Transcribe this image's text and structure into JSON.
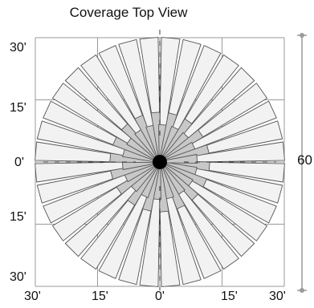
{
  "title": "Coverage Top View",
  "y_labels": [
    "30'",
    "15'",
    "0'",
    "15'",
    "30'"
  ],
  "x_labels": [
    "30'",
    "15'",
    "0'",
    "15'",
    "30'"
  ],
  "dimension_label": "60",
  "colors": {
    "beam_fill": "#f2f2f2",
    "inner_fill": "#c8c8c8",
    "outline": "#555555",
    "grid": "#9a9a9a",
    "center": "#000000"
  },
  "beams": {
    "count": 36,
    "long_reach_ft": 30,
    "inner_reach_ft": [
      9,
      12
    ]
  }
}
